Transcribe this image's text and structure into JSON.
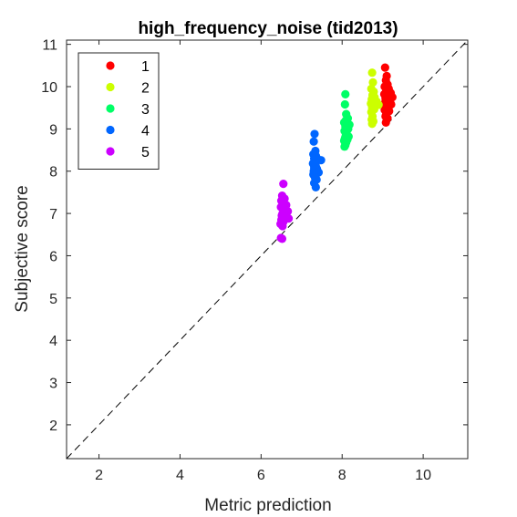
{
  "chart_data": {
    "type": "scatter",
    "title": "high_frequency_noise (tid2013)",
    "xlabel": "Metric prediction",
    "ylabel": "Subjective score",
    "xlim": [
      1.2,
      11.1
    ],
    "ylim": [
      1.2,
      11.1
    ],
    "xticks": [
      2,
      4,
      6,
      8,
      10
    ],
    "yticks": [
      2,
      3,
      4,
      5,
      6,
      7,
      8,
      9,
      10,
      11
    ],
    "grid": false,
    "legend_position": "top-left",
    "reference_line": {
      "style": "dashed",
      "from": [
        1.2,
        1.2
      ],
      "to": [
        11.1,
        11.1
      ]
    },
    "series": [
      {
        "name": "1",
        "color": "#ff0000",
        "points": [
          [
            9.06,
            10.45
          ],
          [
            9.1,
            10.25
          ],
          [
            9.08,
            10.15
          ],
          [
            9.12,
            10.05
          ],
          [
            9.05,
            10.0
          ],
          [
            9.15,
            9.95
          ],
          [
            9.09,
            9.9
          ],
          [
            9.2,
            9.85
          ],
          [
            9.04,
            9.82
          ],
          [
            9.11,
            9.78
          ],
          [
            9.24,
            9.75
          ],
          [
            9.07,
            9.72
          ],
          [
            9.14,
            9.68
          ],
          [
            9.18,
            9.65
          ],
          [
            9.06,
            9.62
          ],
          [
            9.1,
            9.6
          ],
          [
            9.21,
            9.58
          ],
          [
            9.08,
            9.55
          ],
          [
            9.13,
            9.5
          ],
          [
            9.05,
            9.45
          ],
          [
            9.16,
            9.42
          ],
          [
            9.09,
            9.38
          ],
          [
            9.07,
            9.3
          ],
          [
            9.12,
            9.25
          ],
          [
            9.08,
            9.15
          ]
        ]
      },
      {
        "name": "2",
        "color": "#ccff00",
        "points": [
          [
            8.74,
            10.33
          ],
          [
            8.76,
            10.1
          ],
          [
            8.72,
            9.95
          ],
          [
            8.78,
            9.88
          ],
          [
            8.75,
            9.8
          ],
          [
            8.8,
            9.75
          ],
          [
            8.73,
            9.7
          ],
          [
            8.85,
            9.65
          ],
          [
            8.77,
            9.62
          ],
          [
            8.71,
            9.6
          ],
          [
            8.82,
            9.58
          ],
          [
            8.9,
            9.57
          ],
          [
            8.76,
            9.55
          ],
          [
            8.74,
            9.5
          ],
          [
            8.79,
            9.46
          ],
          [
            8.72,
            9.4
          ],
          [
            8.75,
            9.3
          ],
          [
            8.73,
            9.22
          ],
          [
            8.77,
            9.18
          ],
          [
            8.74,
            9.12
          ]
        ]
      },
      {
        "name": "3",
        "color": "#00ff66",
        "points": [
          [
            8.08,
            9.82
          ],
          [
            8.07,
            9.58
          ],
          [
            8.1,
            9.35
          ],
          [
            8.14,
            9.25
          ],
          [
            8.09,
            9.2
          ],
          [
            8.05,
            9.15
          ],
          [
            8.12,
            9.12
          ],
          [
            8.18,
            9.1
          ],
          [
            8.08,
            9.05
          ],
          [
            8.15,
            9.0
          ],
          [
            8.06,
            8.95
          ],
          [
            8.11,
            8.9
          ],
          [
            8.09,
            8.85
          ],
          [
            8.16,
            8.82
          ],
          [
            8.07,
            8.78
          ],
          [
            8.13,
            8.75
          ],
          [
            8.05,
            8.72
          ],
          [
            8.1,
            8.68
          ],
          [
            8.08,
            8.62
          ],
          [
            8.06,
            8.58
          ]
        ]
      },
      {
        "name": "4",
        "color": "#0066ff",
        "points": [
          [
            7.32,
            8.88
          ],
          [
            7.3,
            8.7
          ],
          [
            7.34,
            8.48
          ],
          [
            7.29,
            8.4
          ],
          [
            7.36,
            8.35
          ],
          [
            7.31,
            8.3
          ],
          [
            7.4,
            8.28
          ],
          [
            7.48,
            8.26
          ],
          [
            7.33,
            8.22
          ],
          [
            7.28,
            8.18
          ],
          [
            7.35,
            8.12
          ],
          [
            7.31,
            8.08
          ],
          [
            7.38,
            8.05
          ],
          [
            7.3,
            8.0
          ],
          [
            7.42,
            7.97
          ],
          [
            7.29,
            7.92
          ],
          [
            7.33,
            7.85
          ],
          [
            7.37,
            7.8
          ],
          [
            7.31,
            7.72
          ],
          [
            7.35,
            7.62
          ]
        ]
      },
      {
        "name": "5",
        "color": "#cc00ff",
        "points": [
          [
            6.55,
            7.7
          ],
          [
            6.52,
            7.42
          ],
          [
            6.58,
            7.35
          ],
          [
            6.5,
            7.3
          ],
          [
            6.54,
            7.25
          ],
          [
            6.62,
            7.2
          ],
          [
            6.49,
            7.15
          ],
          [
            6.56,
            7.1
          ],
          [
            6.66,
            7.05
          ],
          [
            6.53,
            7.0
          ],
          [
            6.6,
            6.98
          ],
          [
            6.51,
            6.95
          ],
          [
            6.57,
            6.9
          ],
          [
            6.68,
            6.88
          ],
          [
            6.5,
            6.85
          ],
          [
            6.55,
            6.8
          ],
          [
            6.48,
            6.75
          ],
          [
            6.53,
            6.7
          ],
          [
            6.49,
            6.42
          ],
          [
            6.52,
            6.4
          ]
        ]
      }
    ]
  }
}
